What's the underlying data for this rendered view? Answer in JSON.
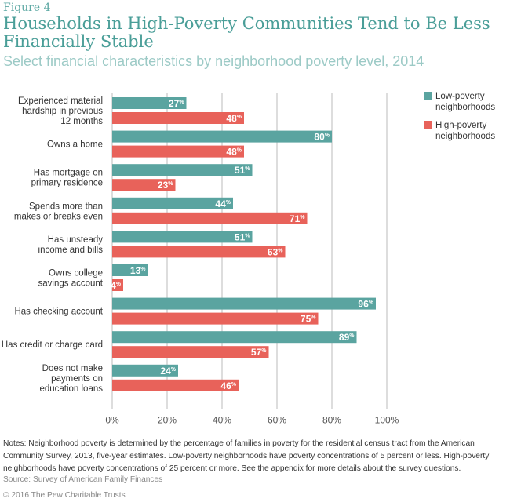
{
  "figure_label": "Figure 4",
  "title": "Households in High-Poverty Communities Tend to Be Less Financially Stable",
  "subtitle": "Select financial characteristics by neighborhood poverty level, 2014",
  "notes": "Notes: Neighborhood poverty is determined by the percentage of families in poverty for the residential census tract from the American Community Survey, 2013, five-year estimates. Low-poverty neighborhoods have poverty concentrations of 5 percent or less. High-poverty neighborhoods have poverty concentrations of 25 percent or more. See the appendix for more details about the survey questions.",
  "source": "Source: Survey of American Family Finances",
  "copyright": "© 2016 The Pew Charitable Trusts",
  "chart_data": {
    "type": "bar",
    "orientation": "horizontal",
    "categories": [
      [
        "Experienced material",
        "hardship in previous",
        "12 months"
      ],
      [
        "Owns a home"
      ],
      [
        "Has mortgage on",
        "primary residence"
      ],
      [
        "Spends more than",
        "makes or breaks even"
      ],
      [
        "Has unsteady",
        "income and bills"
      ],
      [
        "Owns college",
        "savings account"
      ],
      [
        "Has checking account"
      ],
      [
        "Has credit or charge card"
      ],
      [
        "Does not make",
        "payments on",
        "education loans"
      ]
    ],
    "series": [
      {
        "name": "Low-poverty neighborhoods",
        "legend_lines": [
          "Low-poverty",
          "neighborhoods"
        ],
        "color": "#5aa4a0",
        "values": [
          27,
          80,
          51,
          44,
          51,
          13,
          96,
          89,
          24
        ]
      },
      {
        "name": "High-poverty neighborhoods",
        "legend_lines": [
          "High-poverty",
          "neighborhoods"
        ],
        "color": "#e8625a",
        "values": [
          48,
          48,
          23,
          71,
          63,
          4,
          75,
          57,
          46
        ]
      }
    ],
    "value_suffix": "%",
    "xlim": [
      0,
      100
    ],
    "xticks": [
      0,
      20,
      40,
      60,
      80,
      100
    ],
    "xtick_labels": [
      "0%",
      "20%",
      "40%",
      "60%",
      "80%",
      "100%"
    ],
    "grid": true,
    "legend_position": "top-right",
    "data_labels": true
  }
}
